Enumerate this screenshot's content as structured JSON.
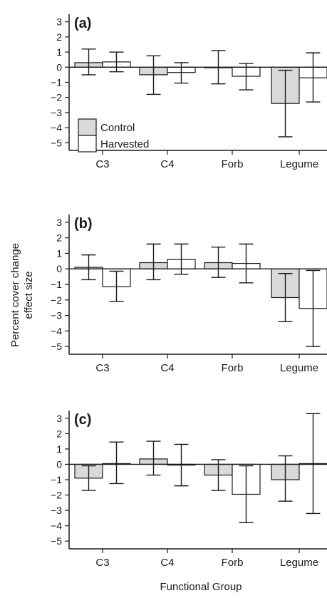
{
  "colors": {
    "control": "#d9d9d9",
    "harvested": "#ffffff",
    "stroke": "#1a1a1a"
  },
  "y_label_lines": [
    "Percent cover change",
    "effect size"
  ],
  "x_label": "Functional Group",
  "legend": [
    {
      "name": "Control",
      "color": "#d9d9d9"
    },
    {
      "name": "Harvested",
      "color": "#ffffff"
    }
  ],
  "chart_data": [
    {
      "type": "bar",
      "panel": "(a)",
      "categories": [
        "C3",
        "C4",
        "Forb",
        "Legume"
      ],
      "ylim": [
        -5.5,
        3.5
      ],
      "yticks": [
        3,
        2,
        1,
        0,
        -1,
        -2,
        -3,
        -4,
        -5
      ],
      "legend_position": "bottom-left",
      "series": [
        {
          "name": "Control",
          "values": [
            0.3,
            -0.5,
            0.0,
            -2.4
          ],
          "err_low": [
            -0.5,
            -1.8,
            -1.1,
            -4.6
          ],
          "err_high": [
            1.2,
            0.75,
            1.1,
            -0.2
          ]
        },
        {
          "name": "Harvested",
          "values": [
            0.35,
            -0.35,
            -0.6,
            -0.7
          ],
          "err_low": [
            -0.3,
            -1.05,
            -1.5,
            -2.3
          ],
          "err_high": [
            1.0,
            0.3,
            0.25,
            0.95
          ]
        }
      ]
    },
    {
      "type": "bar",
      "panel": "(b)",
      "categories": [
        "C3",
        "C4",
        "Forb",
        "Legume"
      ],
      "ylim": [
        -5.5,
        3.5
      ],
      "yticks": [
        3,
        2,
        1,
        0,
        -1,
        -2,
        -3,
        -4,
        -5
      ],
      "series": [
        {
          "name": "Control",
          "values": [
            0.1,
            0.4,
            0.4,
            -1.85
          ],
          "err_low": [
            -0.7,
            -0.7,
            -0.55,
            -3.4
          ],
          "err_high": [
            0.9,
            1.6,
            1.4,
            -0.3
          ]
        },
        {
          "name": "Harvested",
          "values": [
            -1.15,
            0.6,
            0.35,
            -2.55
          ],
          "err_low": [
            -2.1,
            -0.35,
            -0.9,
            -5.0
          ],
          "err_high": [
            -0.15,
            1.6,
            1.6,
            -0.1
          ]
        }
      ]
    },
    {
      "type": "bar",
      "panel": "(c)",
      "categories": [
        "C3",
        "C4",
        "Forb",
        "Legume"
      ],
      "ylim": [
        -5.5,
        3.5
      ],
      "yticks": [
        3,
        2,
        1,
        0,
        -1,
        -2,
        -3,
        -4,
        -5
      ],
      "series": [
        {
          "name": "Control",
          "values": [
            -0.9,
            0.35,
            -0.7,
            -1.0
          ],
          "err_low": [
            -1.7,
            -0.7,
            -1.7,
            -2.4
          ],
          "err_high": [
            -0.1,
            1.5,
            0.3,
            0.55
          ]
        },
        {
          "name": "Harvested",
          "values": [
            0.05,
            -0.05,
            -1.95,
            0.05
          ],
          "err_low": [
            -1.25,
            -1.4,
            -3.8,
            -3.2
          ],
          "err_high": [
            1.45,
            1.3,
            -0.1,
            3.3
          ]
        }
      ]
    }
  ]
}
